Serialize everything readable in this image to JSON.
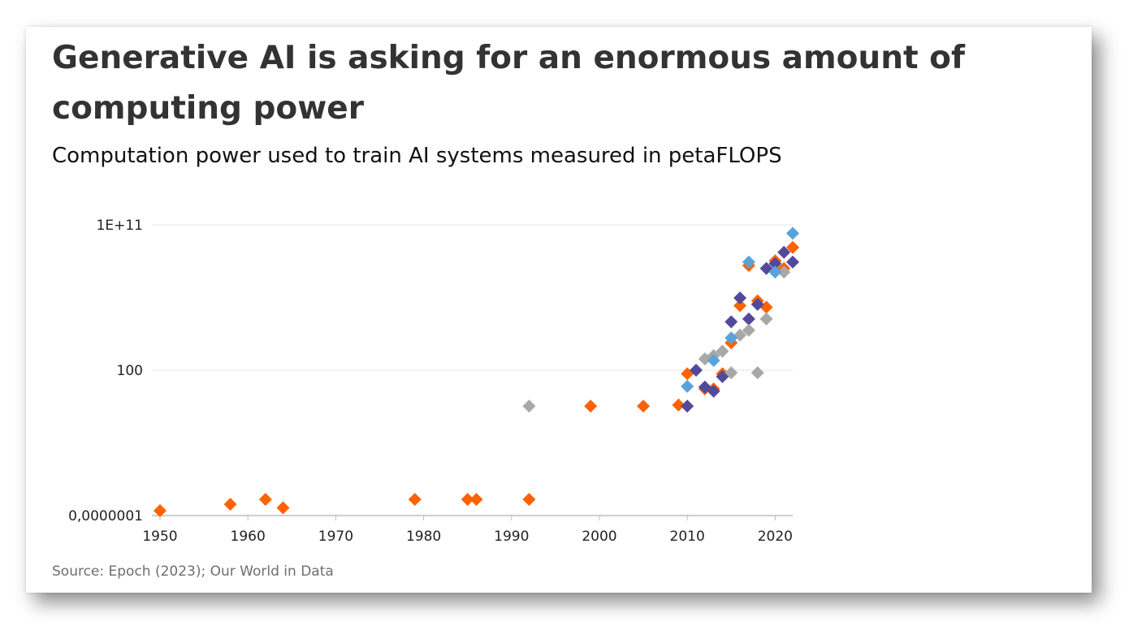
{
  "title": "Generative AI is asking for an enormous amount of computing power",
  "subtitle": "Computation power used to train AI systems measured in petaFLOPS",
  "source": "Source: Epoch (2023); Our World in Data",
  "colors": {
    "orange": "#ff6200",
    "purple": "#52499a",
    "gray": "#a8a8a8",
    "lightblue": "#5aa3d8",
    "gridline": "#e6e6e6",
    "axis": "#bdbdbd"
  },
  "chart_data": {
    "type": "scatter",
    "marker": "diamond",
    "title": "Generative AI is asking for an enormous amount of computing power",
    "subtitle": "Computation power used to train AI systems measured in petaFLOPS",
    "xlabel": "",
    "ylabel": "",
    "y_scale": "log",
    "xlim": [
      1950,
      2022
    ],
    "ylim": [
      1e-07,
      100000000000.0
    ],
    "x_ticks": [
      1950,
      1960,
      1970,
      1980,
      1990,
      2000,
      2010,
      2020
    ],
    "y_ticks": [
      {
        "value": 1e-07,
        "label": "0,0000001"
      },
      {
        "value": 100,
        "label": "100"
      },
      {
        "value": 100000000000.0,
        "label": "1E+11"
      }
    ],
    "grid": "horizontal",
    "legend": "none",
    "series": [
      {
        "color": "#ff6200",
        "points": [
          [
            1950,
            2e-07
          ],
          [
            1958,
            5e-07
          ],
          [
            1962,
            1e-06
          ],
          [
            1964,
            3e-07
          ],
          [
            1979,
            1e-06
          ],
          [
            1985,
            1e-06
          ],
          [
            1986,
            1e-06
          ],
          [
            1992,
            1e-06
          ],
          [
            1999,
            0.6
          ],
          [
            2005,
            0.6
          ],
          [
            2009,
            0.7
          ],
          [
            2010,
            60
          ],
          [
            2012,
            7
          ],
          [
            2013,
            7
          ],
          [
            2014,
            60
          ],
          [
            2015,
            5000
          ],
          [
            2016,
            1000000.0
          ],
          [
            2017,
            300000000.0
          ],
          [
            2018,
            2000000.0
          ],
          [
            2019,
            800000.0
          ],
          [
            2020,
            600000000.0
          ],
          [
            2021,
            200000000.0
          ],
          [
            2022,
            4000000000.0
          ]
        ]
      },
      {
        "color": "#52499a",
        "points": [
          [
            2010,
            0.6
          ],
          [
            2011,
            100
          ],
          [
            2012,
            9
          ],
          [
            2013,
            5
          ],
          [
            2014,
            40
          ],
          [
            2015,
            100000.0
          ],
          [
            2016,
            3000000.0
          ],
          [
            2017,
            150000.0
          ],
          [
            2018,
            1200000.0
          ],
          [
            2019,
            200000000.0
          ],
          [
            2020,
            400000000.0
          ],
          [
            2021,
            2000000000.0
          ],
          [
            2022,
            500000000.0
          ]
        ]
      },
      {
        "color": "#a8a8a8",
        "points": [
          [
            1992,
            0.6
          ],
          [
            2012,
            500
          ],
          [
            2013,
            800
          ],
          [
            2014,
            1500
          ],
          [
            2015,
            70
          ],
          [
            2016,
            15000
          ],
          [
            2017,
            30000
          ],
          [
            2018,
            70
          ],
          [
            2019,
            150000.0
          ],
          [
            2021,
            120000000.0
          ]
        ]
      },
      {
        "color": "#5aa3d8",
        "points": [
          [
            2010,
            10
          ],
          [
            2013,
            400
          ],
          [
            2015,
            10000
          ],
          [
            2017,
            500000000.0
          ],
          [
            2020,
            120000000.0
          ],
          [
            2022,
            30000000000.0
          ]
        ]
      }
    ]
  }
}
